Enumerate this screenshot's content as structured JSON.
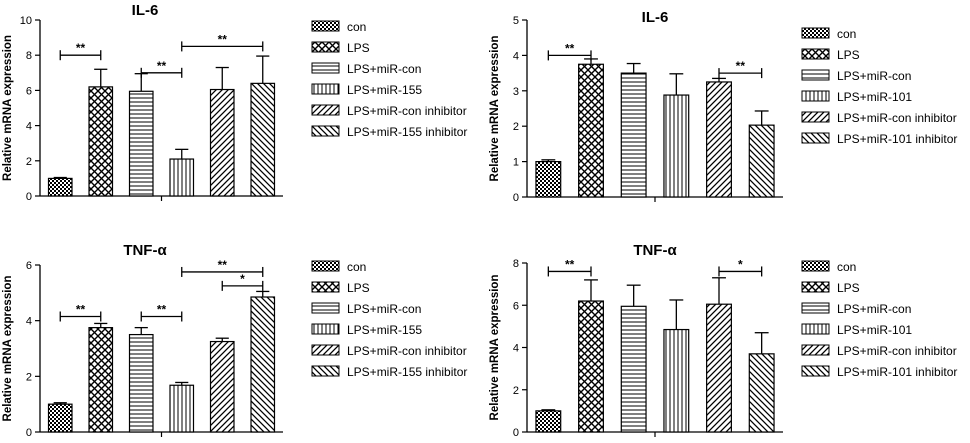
{
  "chart_data": [
    {
      "type": "bar",
      "title": "IL-6",
      "ylabel": "Relative mRNA expression",
      "xlabel": "",
      "ylim": [
        0,
        10
      ],
      "yticks": [
        "0",
        "2",
        "4",
        "6",
        "8",
        "10"
      ],
      "categories": [
        "con",
        "LPS",
        "LPS+miR-con",
        "LPS+miR-155",
        "LPS+miR-con inhibitor",
        "LPS+miR-155 inhibitor"
      ],
      "values": [
        1.0,
        6.2,
        5.95,
        2.1,
        6.05,
        6.4
      ],
      "errors": [
        0.05,
        1.0,
        1.0,
        0.55,
        1.25,
        1.55
      ],
      "legend": [
        "con",
        "LPS",
        "LPS+miR-con",
        "LPS+miR-155",
        "LPS+miR-con inhibitor",
        "LPS+miR-155 inhibitor"
      ],
      "legend_position": "right",
      "significance": [
        {
          "from": 0,
          "to": 1,
          "label": "**",
          "y": 8.0
        },
        {
          "from": 2,
          "to": 3,
          "label": "**",
          "y": 7.0
        },
        {
          "from": 3,
          "to": 5,
          "label": "**",
          "y": 8.5
        }
      ]
    },
    {
      "type": "bar",
      "title": "IL-6",
      "ylabel": "Relative mRNA expression",
      "xlabel": "",
      "ylim": [
        0,
        5
      ],
      "yticks": [
        "0",
        "1",
        "2",
        "3",
        "4",
        "5"
      ],
      "categories": [
        "con",
        "LPS",
        "LPS+miR-con",
        "LPS+miR-101",
        "LPS+miR-con inhibitor",
        "LPS+miR-101 inhibitor"
      ],
      "values": [
        1.0,
        3.75,
        3.5,
        2.88,
        3.25,
        2.03
      ],
      "errors": [
        0.05,
        0.15,
        0.27,
        0.6,
        0.1,
        0.4
      ],
      "legend": [
        "con",
        "LPS",
        "LPS+miR-con",
        "LPS+miR-101",
        "LPS+miR-con inhibitor",
        "LPS+miR-101 inhibitor"
      ],
      "legend_position": "right",
      "significance": [
        {
          "from": 0,
          "to": 1,
          "label": "**",
          "y": 4.0
        },
        {
          "from": 4,
          "to": 5,
          "label": "**",
          "y": 3.5
        }
      ]
    },
    {
      "type": "bar",
      "title": "TNF-α",
      "ylabel": "Relative mRNA expression",
      "xlabel": "",
      "ylim": [
        0,
        6
      ],
      "yticks": [
        "0",
        "2",
        "4",
        "6"
      ],
      "categories": [
        "con",
        "LPS",
        "LPS+miR-con",
        "LPS+miR-155",
        "LPS+miR-con inhibitor",
        "LPS+miR-155 inhibitor"
      ],
      "values": [
        1.0,
        3.75,
        3.5,
        1.68,
        3.25,
        4.85
      ],
      "errors": [
        0.05,
        0.15,
        0.25,
        0.1,
        0.12,
        0.2
      ],
      "legend": [
        "con",
        "LPS",
        "LPS+miR-con",
        "LPS+miR-155",
        "LPS+miR-con inhibitor",
        "LPS+miR-155 inhibitor"
      ],
      "legend_position": "right",
      "significance": [
        {
          "from": 0,
          "to": 1,
          "label": "**",
          "y": 4.15
        },
        {
          "from": 2,
          "to": 3,
          "label": "**",
          "y": 4.15
        },
        {
          "from": 3,
          "to": 5,
          "label": "**",
          "y": 5.75
        },
        {
          "from": 4,
          "to": 5,
          "label": "*",
          "y": 5.25
        }
      ]
    },
    {
      "type": "bar",
      "title": "TNF-α",
      "ylabel": "Relative mRNA expression",
      "xlabel": "",
      "ylim": [
        0,
        8
      ],
      "yticks": [
        "0",
        "2",
        "4",
        "6",
        "8"
      ],
      "categories": [
        "con",
        "LPS",
        "LPS+miR-con",
        "LPS+miR-101",
        "LPS+miR-con inhibitor",
        "LPS+miR-101 inhibitor"
      ],
      "values": [
        1.0,
        6.2,
        5.95,
        4.85,
        6.05,
        3.7
      ],
      "errors": [
        0.05,
        1.0,
        1.0,
        1.4,
        1.25,
        1.0
      ],
      "legend": [
        "con",
        "LPS",
        "LPS+miR-con",
        "LPS+miR-101",
        "LPS+miR-con inhibitor",
        "LPS+miR-101 inhibitor"
      ],
      "legend_position": "right",
      "significance": [
        {
          "from": 0,
          "to": 1,
          "label": "**",
          "y": 7.6
        },
        {
          "from": 4,
          "to": 5,
          "label": "*",
          "y": 7.6
        }
      ]
    }
  ]
}
